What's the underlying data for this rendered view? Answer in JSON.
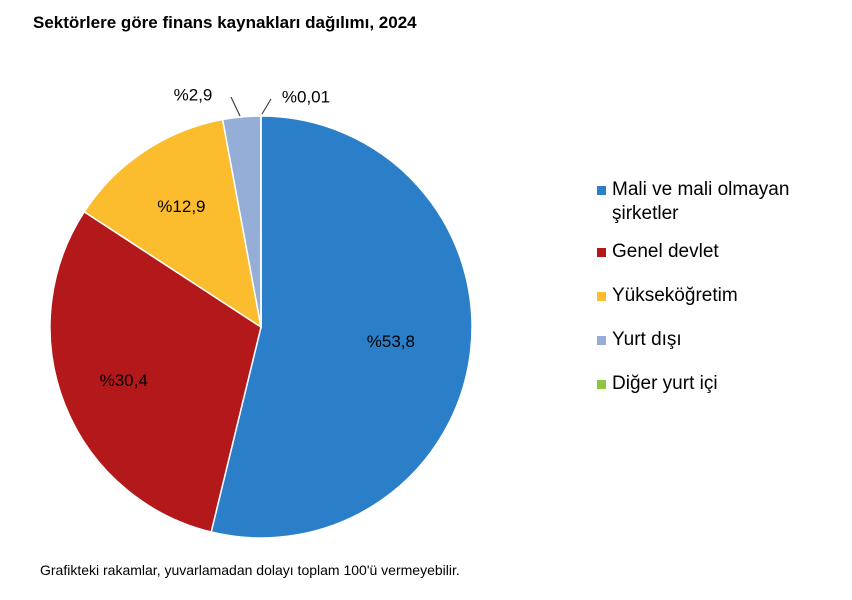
{
  "chart_data": {
    "type": "pie",
    "title": "Sektörlere göre finans kaynakları dağılımı, 2024",
    "slices": [
      {
        "name": "Mali ve mali olmayan şirketler",
        "value": 53.8,
        "label": "%53,8",
        "color": "#2a7fc8"
      },
      {
        "name": "Genel devlet",
        "value": 30.4,
        "label": "%30,4",
        "color": "#b3191b"
      },
      {
        "name": "Yükseköğretim",
        "value": 12.9,
        "label": "%12,9",
        "color": "#fbbd2e"
      },
      {
        "name": "Yurt dışı",
        "value": 2.9,
        "label": "%2,9",
        "color": "#94aed8"
      },
      {
        "name": "Diğer yurt içi",
        "value": 0.01,
        "label": "%0,01",
        "color": "#8dc63f"
      }
    ],
    "legend_position": "right",
    "footnote": "Grafikteki rakamlar, yuvarlamadan dolayı toplam 100'ü vermeyebilir."
  }
}
